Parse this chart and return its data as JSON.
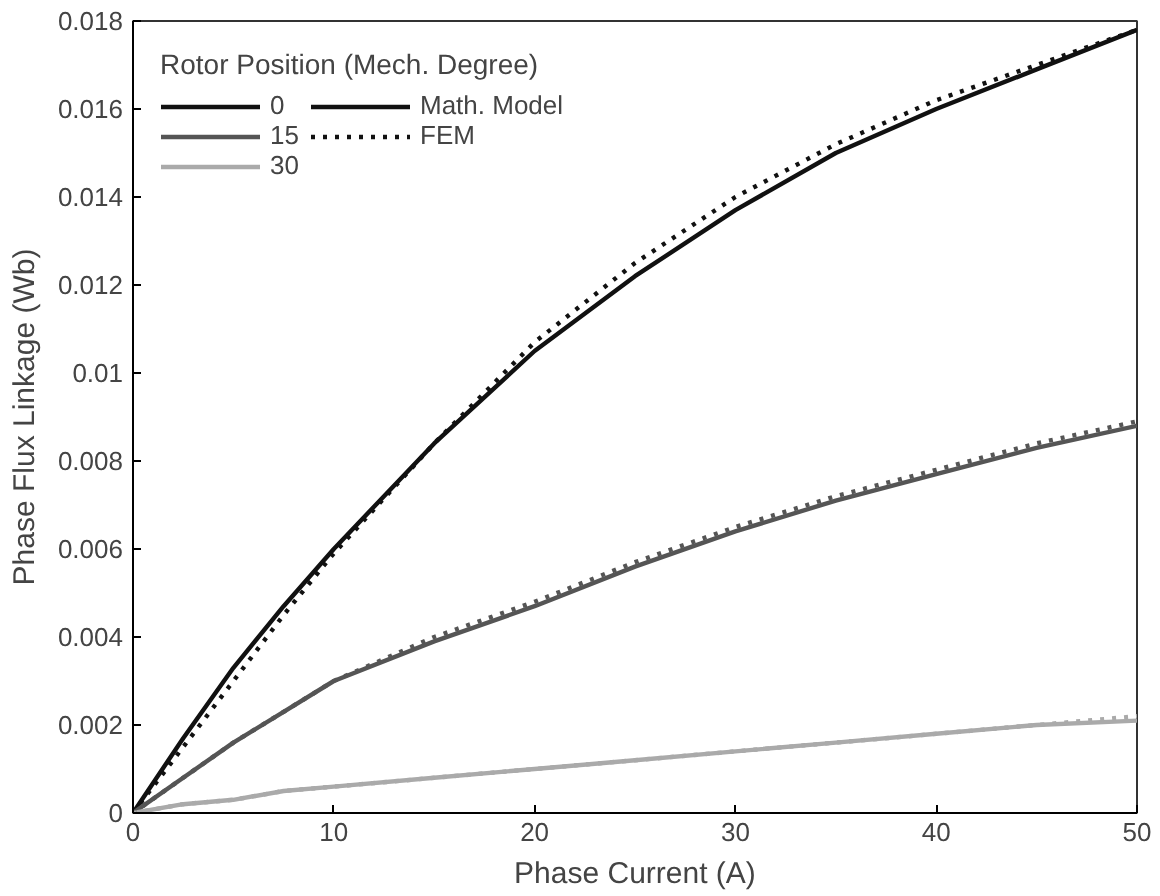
{
  "chart_data": {
    "type": "line",
    "xlabel": "Phase Current (A)",
    "ylabel": "Phase Flux Linkage (Wb)",
    "legend_title": "Rotor Position (Mech. Degree)",
    "x": [
      0,
      2.5,
      5,
      7.5,
      10,
      15,
      20,
      25,
      30,
      35,
      40,
      45,
      50
    ],
    "series": [
      {
        "name": "0",
        "color": "#111111",
        "line_style": "solid",
        "values": [
          0,
          0.0017,
          0.0033,
          0.0047,
          0.006,
          0.0084,
          0.0105,
          0.0122,
          0.0137,
          0.015,
          0.016,
          0.0169,
          0.0178
        ]
      },
      {
        "name": "15",
        "color": "#555555",
        "line_style": "solid",
        "values": [
          0,
          0.0008,
          0.0016,
          0.0023,
          0.003,
          0.0039,
          0.0047,
          0.0056,
          0.0064,
          0.0071,
          0.0077,
          0.0083,
          0.0088
        ]
      },
      {
        "name": "30",
        "color": "#aaaaaa",
        "line_style": "solid",
        "values": [
          0,
          0.0002,
          0.0003,
          0.0005,
          0.0006,
          0.0008,
          0.001,
          0.0012,
          0.0014,
          0.0016,
          0.0018,
          0.002,
          0.0021
        ]
      },
      {
        "color": "#111111",
        "line_style": "dotted",
        "values": [
          0,
          0.0015,
          0.003,
          0.0045,
          0.0059,
          0.0084,
          0.0107,
          0.0125,
          0.014,
          0.0152,
          0.0162,
          0.017,
          0.0178
        ]
      },
      {
        "color": "#555555",
        "line_style": "dotted",
        "values": [
          0,
          0.0008,
          0.0016,
          0.0023,
          0.003,
          0.004,
          0.0048,
          0.0057,
          0.0065,
          0.0072,
          0.0078,
          0.0084,
          0.0089
        ]
      },
      {
        "color": "#aaaaaa",
        "line_style": "dotted",
        "values": [
          0,
          0.0002,
          0.0003,
          0.0005,
          0.0006,
          0.0008,
          0.001,
          0.0012,
          0.0014,
          0.0016,
          0.0018,
          0.002,
          0.0022
        ]
      }
    ],
    "annotations": [
      "Math. Model",
      "FEM"
    ],
    "xlim": [
      0,
      50
    ],
    "ylim": [
      0,
      0.018
    ],
    "xticks": [
      0,
      10,
      20,
      30,
      40,
      50
    ],
    "yticks": [
      0,
      0.002,
      0.004,
      0.006,
      0.008,
      0.01,
      0.012,
      0.014,
      0.016,
      0.018
    ],
    "legend": "top left",
    "grid": false
  }
}
